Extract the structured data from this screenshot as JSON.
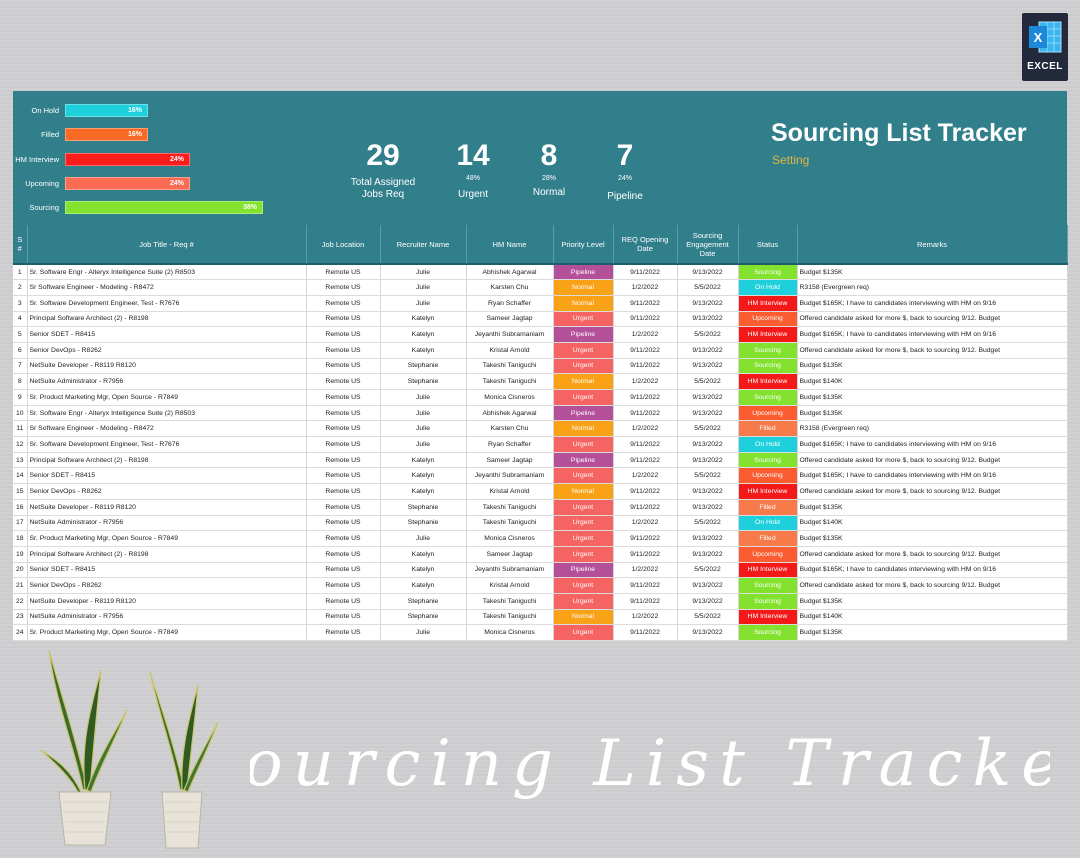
{
  "excel_badge": {
    "label": "EXCEL"
  },
  "dashboard": {
    "title": "Sourcing List Tracker",
    "setting": "Setting",
    "bars": [
      {
        "label": "On Hold",
        "pct": "16%",
        "value": 0.16,
        "color": "#1ed0dc"
      },
      {
        "label": "Filled",
        "pct": "16%",
        "value": 0.16,
        "color": "#f96a27"
      },
      {
        "label": "HM Interview",
        "pct": "24%",
        "value": 0.24,
        "color": "#fb1c1c"
      },
      {
        "label": "Upcoming",
        "pct": "24%",
        "value": 0.24,
        "color": "#fb6a52"
      },
      {
        "label": "Sourcing",
        "pct": "38%",
        "value": 0.38,
        "color": "#82e22d"
      }
    ],
    "kpis": {
      "total": {
        "num": "29",
        "label": "Total Assigned Jobs Req"
      },
      "urgent": {
        "num": "14",
        "pct": "48%",
        "label": "Urgent"
      },
      "normal": {
        "num": "8",
        "pct": "28%",
        "label": "Normal"
      },
      "pipeline": {
        "num": "7",
        "pct": "24%",
        "label": "Pipeline"
      }
    }
  },
  "table": {
    "headers": [
      "S #",
      "Job Title - Req #",
      "Job Location",
      "Recruiter Name",
      "HM Name",
      "Priority Level",
      "REQ Opening Date",
      "Sourcing Engagement Date",
      "Status",
      "Remarks"
    ],
    "priority_colors": {
      "Pipeline": "#b44f99",
      "Normal": "#f9a117",
      "Urgent": "#f66363"
    },
    "status_colors": {
      "Sourcing": "#82e22d",
      "On Hold": "#1ed0dc",
      "HM Interview": "#f41919",
      "Upcoming": "#fb5c30",
      "Filled": "#f77a4b"
    },
    "rows": [
      [
        "1",
        "Sr. Software Engr - Alteryx Intelligence Suite  (2) R8503",
        "Remote US",
        "Julie",
        "Abhishek Agarwal",
        "Pipeline",
        "9/11/2022",
        "9/13/2022",
        "Sourcing",
        "Budget $135K"
      ],
      [
        "2",
        "Sr Software Engineer - Modeling - R8472",
        "Remote US",
        "Julie",
        "Karsten Chu",
        "Normal",
        "1/2/2022",
        "5/5/2022",
        "On Hold",
        "R3158 (Evergreen req)"
      ],
      [
        "3",
        "Sr. Software Development Engineer, Test - R7676",
        "Remote US",
        "Julie",
        "Ryan Schaffer",
        "Normal",
        "9/11/2022",
        "9/13/2022",
        "HM Interview",
        "Budget $165K; I have to candidates interviewing with HM on 9/16"
      ],
      [
        "4",
        "Principal Software Architect (2) - R8198",
        "Remote US",
        "Katelyn",
        "Sameer Jagtap",
        "Urgent",
        "9/11/2022",
        "9/13/2022",
        "Upcoming",
        "Offered candidate asked for more $, back to sourcing 9/12. Budget"
      ],
      [
        "5",
        "Senior SDET - R8415",
        "Remote US",
        "Katelyn",
        "Jeyanthi Subramaniam",
        "Pipeline",
        "1/2/2022",
        "5/5/2022",
        "HM Interview",
        "Budget $165K; I have to candidates interviewing with HM on 9/16"
      ],
      [
        "6",
        "Senior DevOps - R8262",
        "Remote US",
        "Katelyn",
        "Kristal Arnold",
        "Urgent",
        "9/11/2022",
        "9/13/2022",
        "Sourcing",
        "Offered candidate asked for more $, back to sourcing 9/12. Budget"
      ],
      [
        "7",
        "NetSuite Developer - R8119    R8120",
        "Remote US",
        "Stephanie",
        "Takeshi Taniguchi",
        "Urgent",
        "9/11/2022",
        "9/13/2022",
        "Sourcing",
        "Budget $135K"
      ],
      [
        "8",
        "NetSuite Administrator - R7956",
        "Remote US",
        "Stephanie",
        "Takeshi Taniguchi",
        "Normal",
        "1/2/2022",
        "5/5/2022",
        "HM Interview",
        "Budget $140K"
      ],
      [
        "9",
        "Sr. Product Marketing Mgr, Open Source - R7849",
        "Remote US",
        "Julie",
        "Monica Cisneros",
        "Urgent",
        "9/11/2022",
        "9/13/2022",
        "Sourcing",
        "Budget $135K"
      ],
      [
        "10",
        "Sr. Software Engr - Alteryx Intelligence Suite  (2) R8503",
        "Remote US",
        "Julie",
        "Abhishek Agarwal",
        "Pipeline",
        "9/11/2022",
        "9/13/2022",
        "Upcoming",
        "Budget $135K"
      ],
      [
        "11",
        "Sr Software Engineer - Modeling - R8472",
        "Remote US",
        "Julie",
        "Karsten Chu",
        "Normal",
        "1/2/2022",
        "5/5/2022",
        "Filled",
        "R3158 (Evergreen req)"
      ],
      [
        "12",
        "Sr. Software Development Engineer, Test - R7676",
        "Remote US",
        "Julie",
        "Ryan Schaffer",
        "Urgent",
        "9/11/2022",
        "9/13/2022",
        "On Hold",
        "Budget $165K; I have to candidates interviewing with HM on 9/16"
      ],
      [
        "13",
        "Principal Software Architect (2) - R8198",
        "Remote US",
        "Katelyn",
        "Sameer Jagtap",
        "Pipeline",
        "9/11/2022",
        "9/13/2022",
        "Sourcing",
        "Offered candidate asked for more $, back to sourcing 9/12. Budget"
      ],
      [
        "14",
        "Senior SDET - R8415",
        "Remote US",
        "Katelyn",
        "Jeyanthi Subramaniam",
        "Urgent",
        "1/2/2022",
        "5/5/2022",
        "Upcoming",
        "Budget $165K; I have to candidates interviewing with HM on 9/16"
      ],
      [
        "15",
        "Senior DevOps - R8262",
        "Remote US",
        "Katelyn",
        "Kristal Arnold",
        "Normal",
        "9/11/2022",
        "9/13/2022",
        "HM Interview",
        "Offered candidate asked for more $, back to sourcing 9/12. Budget"
      ],
      [
        "16",
        "NetSuite Developer - R8119    R8120",
        "Remote US",
        "Stephanie",
        "Takeshi Taniguchi",
        "Urgent",
        "9/11/2022",
        "9/13/2022",
        "Filled",
        "Budget $135K"
      ],
      [
        "17",
        "NetSuite Administrator - R7956",
        "Remote US",
        "Stephanie",
        "Takeshi Taniguchi",
        "Urgent",
        "1/2/2022",
        "5/5/2022",
        "On Hold",
        "Budget $140K"
      ],
      [
        "18",
        "Sr. Product Marketing Mgr, Open Source - R7849",
        "Remote US",
        "Julie",
        "Monica Cisneros",
        "Urgent",
        "9/11/2022",
        "9/13/2022",
        "Filled",
        "Budget $135K"
      ],
      [
        "19",
        "Principal Software Architect (2) - R8198",
        "Remote US",
        "Katelyn",
        "Sameer Jagtap",
        "Urgent",
        "9/11/2022",
        "9/13/2022",
        "Upcoming",
        "Offered candidate asked for more $, back to sourcing 9/12. Budget"
      ],
      [
        "20",
        "Senior SDET - R8415",
        "Remote US",
        "Katelyn",
        "Jeyanthi Subramaniam",
        "Pipeline",
        "1/2/2022",
        "5/5/2022",
        "HM Interview",
        "Budget $165K; I have to candidates interviewing with HM on 9/16"
      ],
      [
        "21",
        "Senior DevOps - R8262",
        "Remote US",
        "Katelyn",
        "Kristal Arnold",
        "Urgent",
        "9/11/2022",
        "9/13/2022",
        "Sourcing",
        "Offered candidate asked for more $, back to sourcing 9/12. Budget"
      ],
      [
        "22",
        "NetSuite Developer - R8119    R8120",
        "Remote US",
        "Stephanie",
        "Takeshi Taniguchi",
        "Urgent",
        "9/11/2022",
        "9/13/2022",
        "Sourcing",
        "Budget $135K"
      ],
      [
        "23",
        "NetSuite Administrator - R7956",
        "Remote US",
        "Stephanie",
        "Takeshi Taniguchi",
        "Normal",
        "1/2/2022",
        "5/5/2022",
        "HM Interview",
        "Budget $140K"
      ],
      [
        "24",
        "Sr. Product Marketing Mgr, Open Source - R7849",
        "Remote US",
        "Julie",
        "Monica Cisneros",
        "Urgent",
        "9/11/2022",
        "9/13/2022",
        "Sourcing",
        "Budget $135K"
      ]
    ]
  },
  "footer": {
    "script_title": "Sourcing List Tracker"
  }
}
